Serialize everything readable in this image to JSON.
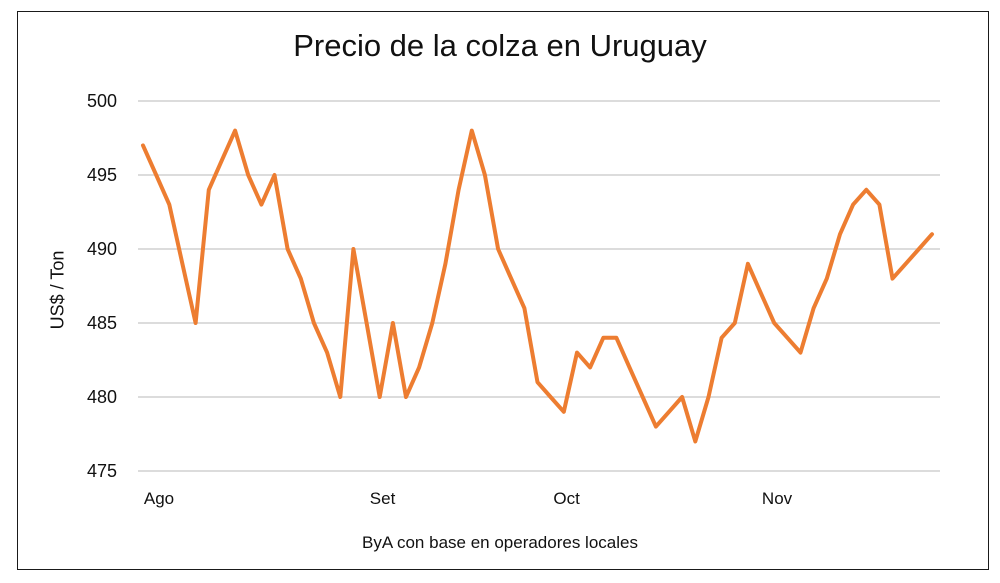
{
  "chart_data": {
    "type": "line",
    "title": "Precio de la colza en Uruguay",
    "ylabel": "US$ / Ton",
    "note": "ByA con base en operadores locales",
    "ylim": [
      475,
      500
    ],
    "yticks": [
      475,
      480,
      485,
      490,
      495,
      500
    ],
    "grid": true,
    "color": "#ED7D31",
    "x_month_labels": [
      {
        "label": "Ago",
        "index": 0
      },
      {
        "label": "Set",
        "index": 17
      },
      {
        "label": "Oct",
        "index": 31
      },
      {
        "label": "Nov",
        "index": 47
      }
    ],
    "series": [
      {
        "values": [
          497,
          495,
          493,
          489,
          485,
          494,
          496,
          498,
          495,
          493,
          495,
          490,
          488,
          485,
          483,
          480,
          490,
          485,
          480,
          485,
          480,
          482,
          485,
          489,
          494,
          498,
          495,
          490,
          488,
          486,
          481,
          480,
          479,
          483,
          482,
          484,
          484,
          482,
          480,
          478,
          479,
          480,
          477,
          480,
          484,
          485,
          489,
          487,
          485,
          484,
          483,
          486,
          488,
          491,
          493,
          494,
          493,
          488,
          489,
          490,
          491
        ]
      }
    ]
  }
}
